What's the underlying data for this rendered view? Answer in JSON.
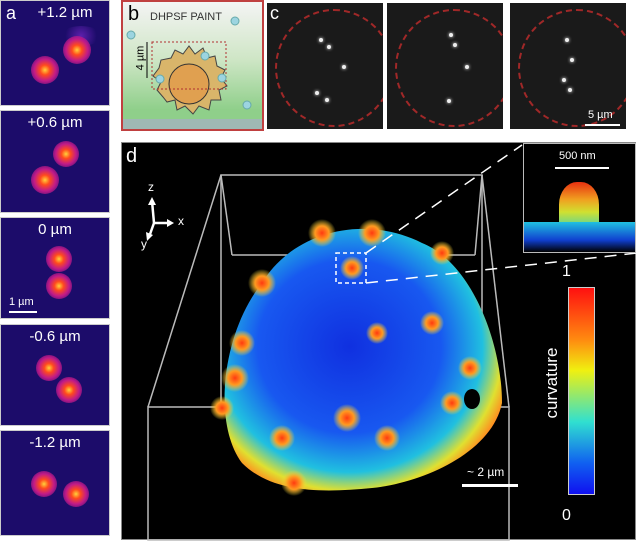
{
  "panel_a": {
    "label": "a",
    "tiles": [
      "+1.2 µm",
      "+0.6 µm",
      "0 µm",
      "-0.6 µm",
      "-1.2 µm"
    ],
    "scalebar": "1 µm"
  },
  "panel_b": {
    "label": "b",
    "title": "DHPSF PAINT",
    "scalebar": "4 µm"
  },
  "panel_c": {
    "label": "c",
    "scalebar": "5 µm"
  },
  "panel_d": {
    "label": "d",
    "axes": {
      "z": "z",
      "x": "x",
      "y": "y"
    },
    "scalebar": "~ 2 µm",
    "inset_scalebar": "500 nm",
    "colorbar": {
      "label": "curvature",
      "max": "1",
      "min": "0"
    }
  },
  "colors": {
    "navy": "#1c0c6a",
    "frame_red": "#c04040",
    "dash_red": "#a02828"
  }
}
